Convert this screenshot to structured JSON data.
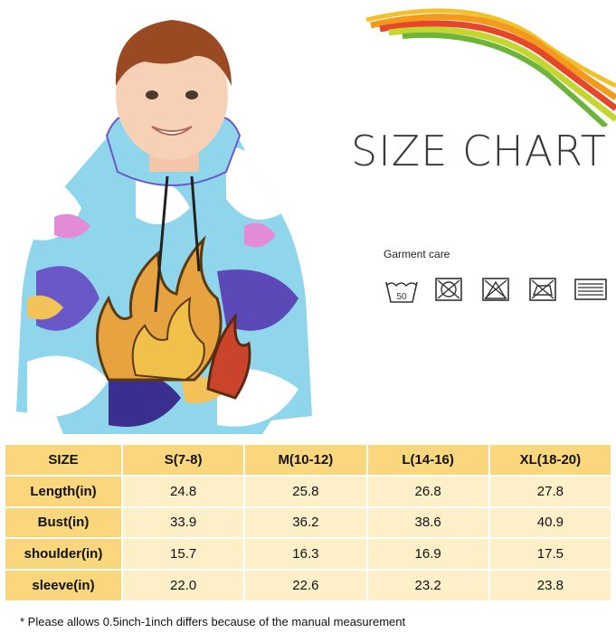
{
  "header": {
    "title": "SIZE CHART",
    "garment_care_label": "Garment care",
    "care_icons": [
      "wash-50-icon",
      "no-bleach-icon",
      "no-tumble-dry-icon",
      "no-iron-icon",
      "dry-flat-icon"
    ],
    "wash_temp": "50"
  },
  "size_table": {
    "headers": [
      "SIZE",
      "S(7-8)",
      "M(10-12)",
      "L(14-16)",
      "XL(18-20)"
    ],
    "rows": [
      {
        "label": "Length(in)",
        "values": [
          "24.8",
          "25.8",
          "26.8",
          "27.8"
        ]
      },
      {
        "label": "Bust(in)",
        "values": [
          "33.9",
          "36.2",
          "38.6",
          "40.9"
        ]
      },
      {
        "label": "shoulder(in)",
        "values": [
          "15.7",
          "16.3",
          "16.9",
          "17.5"
        ]
      },
      {
        "label": "sleeve(in)",
        "values": [
          "22.0",
          "22.6",
          "23.2",
          "23.8"
        ]
      }
    ]
  },
  "note": "* Please  allows 0.5inch-1inch differs because  of  the manual measurement",
  "colors": {
    "header_cell": "#fad77c",
    "body_cell": "#fdf0c8",
    "title": "#3a3a3a"
  }
}
